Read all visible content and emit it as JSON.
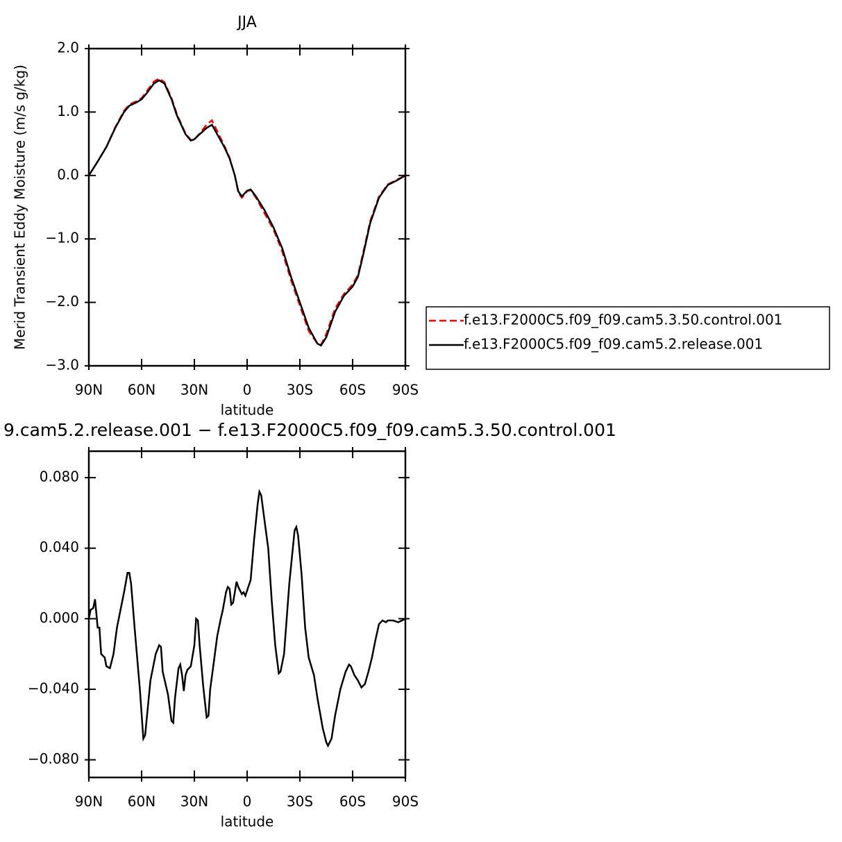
{
  "chart_data": [
    {
      "type": "line",
      "title": "JJA",
      "x_label": "latitude",
      "y_label": "Merid Transient Eddy Moisture (m/s g/kg)",
      "x": [
        90,
        85,
        80,
        75,
        70,
        67,
        63,
        60,
        57,
        53,
        50,
        47,
        43,
        40,
        35,
        32,
        30,
        27,
        23,
        20,
        17,
        13,
        10,
        7,
        5,
        3,
        0,
        -2,
        -5,
        -10,
        -15,
        -20,
        -25,
        -30,
        -35,
        -40,
        -42,
        -45,
        -50,
        -55,
        -60,
        -63,
        -66,
        -70,
        -75,
        -80,
        -85,
        -90
      ],
      "series": [
        {
          "name": "f.e13.F2000C5.f09_f09.cam5.3.50.control.001",
          "color": "#ff0000",
          "line_style": "dashed",
          "values": [
            0.0,
            0.22,
            0.45,
            0.76,
            1.02,
            1.12,
            1.17,
            1.22,
            1.33,
            1.48,
            1.53,
            1.47,
            1.22,
            0.97,
            0.66,
            0.56,
            0.57,
            0.66,
            0.8,
            0.87,
            0.7,
            0.47,
            0.28,
            0.0,
            -0.27,
            -0.35,
            -0.25,
            -0.23,
            -0.35,
            -0.6,
            -0.85,
            -1.2,
            -1.65,
            -2.05,
            -2.45,
            -2.65,
            -2.67,
            -2.5,
            -2.1,
            -1.87,
            -1.72,
            -1.57,
            -1.22,
            -0.72,
            -0.33,
            -0.14,
            -0.07,
            0.0
          ]
        },
        {
          "name": "f.e13.F2000C5.f09_f09.cam5.2.release.001",
          "color": "#000000",
          "line_style": "solid",
          "values": [
            0.0,
            0.22,
            0.45,
            0.75,
            1.0,
            1.1,
            1.15,
            1.2,
            1.3,
            1.45,
            1.5,
            1.45,
            1.2,
            0.95,
            0.65,
            0.55,
            0.57,
            0.65,
            0.75,
            0.8,
            0.65,
            0.45,
            0.27,
            0.0,
            -0.25,
            -0.33,
            -0.24,
            -0.22,
            -0.33,
            -0.55,
            -0.82,
            -1.15,
            -1.6,
            -2.0,
            -2.4,
            -2.65,
            -2.68,
            -2.55,
            -2.15,
            -1.9,
            -1.75,
            -1.6,
            -1.25,
            -0.75,
            -0.35,
            -0.15,
            -0.08,
            0.0
          ]
        }
      ],
      "xlim": [
        90,
        -90
      ],
      "xticks": [
        {
          "value": 90,
          "label": "90N"
        },
        {
          "value": 60,
          "label": "60N"
        },
        {
          "value": 30,
          "label": "30N"
        },
        0,
        {
          "value": -30,
          "label": "30S"
        },
        {
          "value": -60,
          "label": "60S"
        },
        {
          "value": -90,
          "label": "90S"
        }
      ],
      "ylim": [
        -3,
        2
      ],
      "yticks": [
        {
          "value": 2,
          "label": "2.0"
        },
        {
          "value": 1,
          "label": "1.0"
        },
        {
          "value": 0,
          "label": "0.0"
        },
        {
          "value": -1,
          "label": "−1.0"
        },
        {
          "value": -2,
          "label": "−2.0"
        },
        {
          "value": -3,
          "label": "−3.0"
        }
      ]
    },
    {
      "type": "line",
      "title": "9.cam5.2.release.001  −  f.e13.F2000C5.f09_f09.cam5.3.50.control.001",
      "x_label": "latitude",
      "x": [
        90,
        89,
        87.5,
        86.5,
        85,
        84,
        83,
        81,
        80,
        78,
        76,
        74,
        72,
        70,
        68,
        67,
        66,
        64,
        61,
        59,
        58,
        55,
        52,
        50,
        49,
        48,
        45,
        43,
        42,
        41,
        39,
        38,
        37,
        36,
        35,
        34,
        32,
        30,
        29,
        28,
        27,
        25,
        23,
        22,
        21,
        19,
        17,
        15,
        14,
        12,
        11,
        10,
        9,
        8,
        7,
        6,
        5,
        3,
        2,
        1,
        0,
        -2,
        -4,
        -6,
        -7,
        -8,
        -10,
        -12,
        -14,
        -16,
        -18,
        -19,
        -21,
        -24,
        -27,
        -28,
        -29,
        -31,
        -33,
        -35,
        -38,
        -40,
        -43,
        -45,
        -46,
        -48,
        -50,
        -53,
        -56,
        -58,
        -59,
        -61,
        -63,
        -65,
        -67,
        -69,
        -71,
        -73,
        -75,
        -77,
        -79,
        -80,
        -83,
        -86,
        -90
      ],
      "series": [
        {
          "color": "#000000",
          "values": [
            0.0,
            0.005,
            0.006,
            0.011,
            -0.005,
            -0.005,
            -0.02,
            -0.022,
            -0.027,
            -0.028,
            -0.02,
            -0.005,
            0.005,
            0.015,
            0.026,
            0.026,
            0.02,
            -0.005,
            -0.04,
            -0.068,
            -0.066,
            -0.035,
            -0.02,
            -0.015,
            -0.016,
            -0.03,
            -0.043,
            -0.058,
            -0.059,
            -0.045,
            -0.028,
            -0.026,
            -0.032,
            -0.041,
            -0.032,
            -0.029,
            -0.027,
            -0.015,
            0.0,
            -0.001,
            -0.015,
            -0.038,
            -0.056,
            -0.055,
            -0.04,
            -0.025,
            -0.01,
            0.0,
            0.004,
            0.015,
            0.018,
            0.017,
            0.008,
            0.009,
            0.015,
            0.021,
            0.018,
            0.014,
            0.015,
            0.013,
            0.016,
            0.022,
            0.045,
            0.065,
            0.072,
            0.07,
            0.055,
            0.04,
            0.01,
            -0.015,
            -0.031,
            -0.03,
            -0.02,
            0.02,
            0.05,
            0.052,
            0.047,
            0.025,
            -0.005,
            -0.022,
            -0.032,
            -0.045,
            -0.062,
            -0.07,
            -0.072,
            -0.068,
            -0.055,
            -0.04,
            -0.03,
            -0.026,
            -0.027,
            -0.032,
            -0.035,
            -0.039,
            -0.037,
            -0.03,
            -0.022,
            -0.012,
            -0.003,
            -0.001,
            -0.002,
            -0.001,
            -0.001,
            -0.002,
            0.0
          ]
        }
      ],
      "xlim": [
        90,
        -90
      ],
      "xticks": [
        {
          "value": 90,
          "label": "90N"
        },
        {
          "value": 60,
          "label": "60N"
        },
        {
          "value": 30,
          "label": "30N"
        },
        0,
        {
          "value": -30,
          "label": "30S"
        },
        {
          "value": -60,
          "label": "60S"
        },
        {
          "value": -90,
          "label": "90S"
        }
      ],
      "ylim": [
        -0.09,
        0.095
      ],
      "yticks": [
        {
          "value": 0.08,
          "label": "0.080"
        },
        {
          "value": 0.04,
          "label": "0.040"
        },
        {
          "value": 0,
          "label": "0.000"
        },
        {
          "value": -0.04,
          "label": "−0.040"
        },
        {
          "value": -0.08,
          "label": "−0.080"
        }
      ]
    }
  ]
}
